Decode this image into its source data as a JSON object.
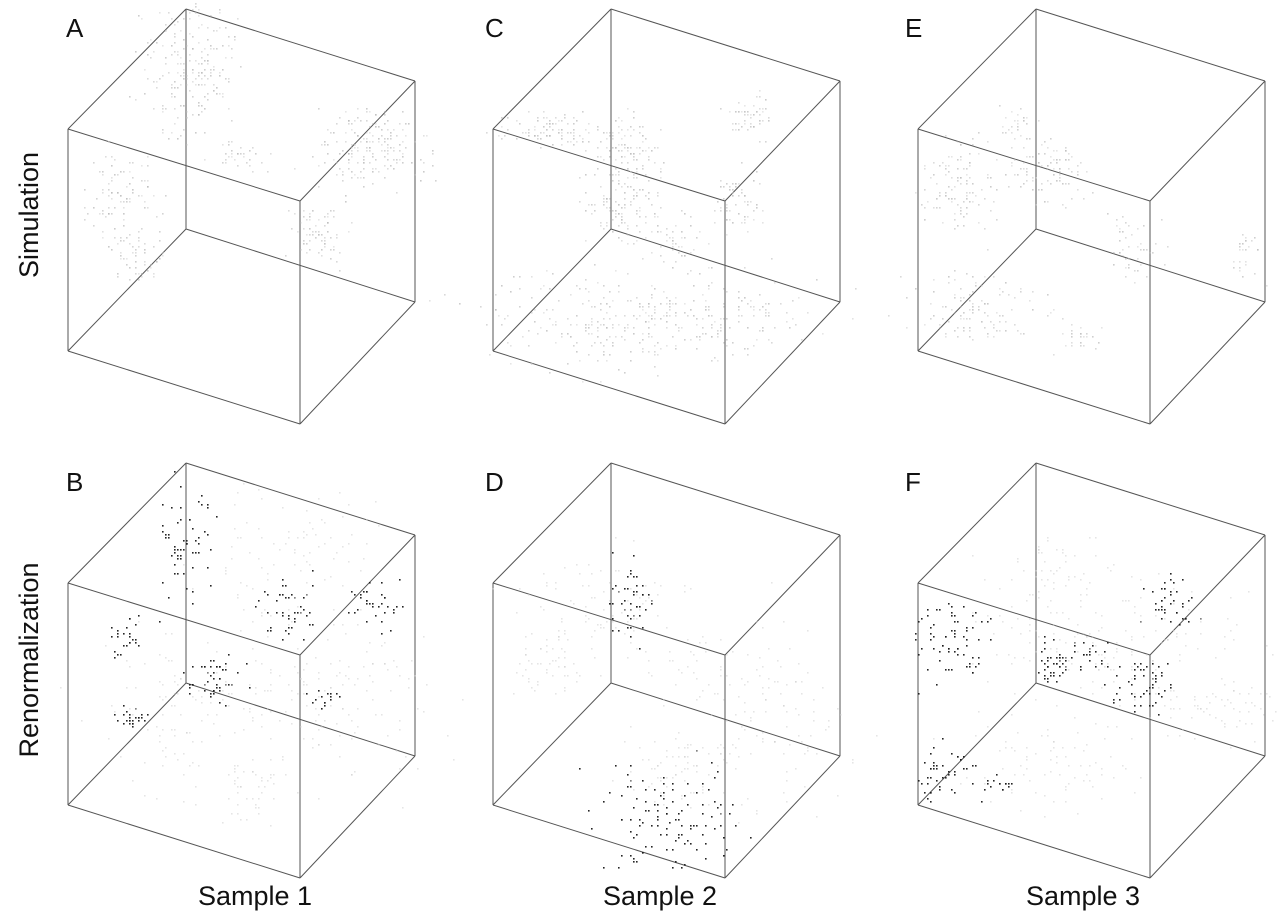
{
  "figure": {
    "row_labels": [
      "Simulation",
      "Renormalization"
    ],
    "column_labels": [
      "Sample 1",
      "Sample 2",
      "Sample 3"
    ],
    "colors": {
      "edge": "#555555",
      "simulation_points": "#bdbdbd",
      "highlight_points": "#1a1a1a",
      "background_points": "#cfcfcf"
    },
    "panels": [
      {
        "letter": "A",
        "row": "Simulation",
        "column": "Sample 1"
      },
      {
        "letter": "B",
        "row": "Renormalization",
        "column": "Sample 1"
      },
      {
        "letter": "C",
        "row": "Simulation",
        "column": "Sample 2"
      },
      {
        "letter": "D",
        "row": "Renormalization",
        "column": "Sample 2"
      },
      {
        "letter": "E",
        "row": "Simulation",
        "column": "Sample 3"
      },
      {
        "letter": "F",
        "row": "Renormalization",
        "column": "Sample 3"
      }
    ]
  }
}
